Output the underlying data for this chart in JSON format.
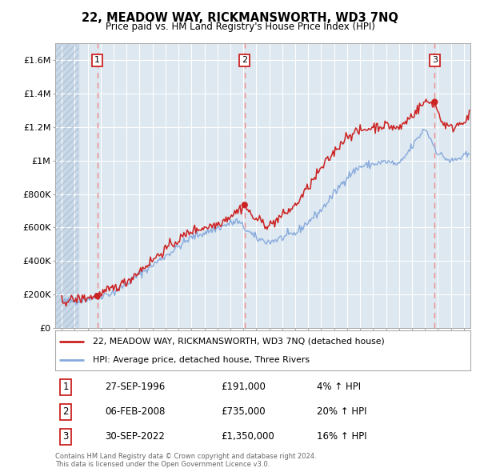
{
  "title": "22, MEADOW WAY, RICKMANSWORTH, WD3 7NQ",
  "subtitle": "Price paid vs. HM Land Registry's House Price Index (HPI)",
  "legend_line1": "22, MEADOW WAY, RICKMANSWORTH, WD3 7NQ (detached house)",
  "legend_line2": "HPI: Average price, detached house, Three Rivers",
  "footnote": "Contains HM Land Registry data © Crown copyright and database right 2024.\nThis data is licensed under the Open Government Licence v3.0.",
  "transactions": [
    {
      "num": 1,
      "date": "27-SEP-1996",
      "price": 191000,
      "hpi_pct": "4%",
      "x": 1996.75
    },
    {
      "num": 2,
      "date": "06-FEB-2008",
      "price": 735000,
      "hpi_pct": "20%",
      "x": 2008.1
    },
    {
      "num": 3,
      "date": "30-SEP-2022",
      "price": 1350000,
      "hpi_pct": "16%",
      "x": 2022.75
    }
  ],
  "ylim": [
    0,
    1700000
  ],
  "xlim": [
    1993.5,
    2025.5
  ],
  "yticks": [
    0,
    200000,
    400000,
    600000,
    800000,
    1000000,
    1200000,
    1400000,
    1600000
  ],
  "ytick_labels": [
    "£0",
    "£200K",
    "£400K",
    "£600K",
    "£800K",
    "£1M",
    "£1.2M",
    "£1.4M",
    "£1.6M"
  ],
  "price_line_color": "#cc2222",
  "hpi_line_color": "#88aadd",
  "dashed_line_color": "#ee8888",
  "background_color": "#ffffff",
  "plot_bg_color": "#dde8f0",
  "hatch_region_end": 1995.3,
  "grid_color": "#ffffff"
}
